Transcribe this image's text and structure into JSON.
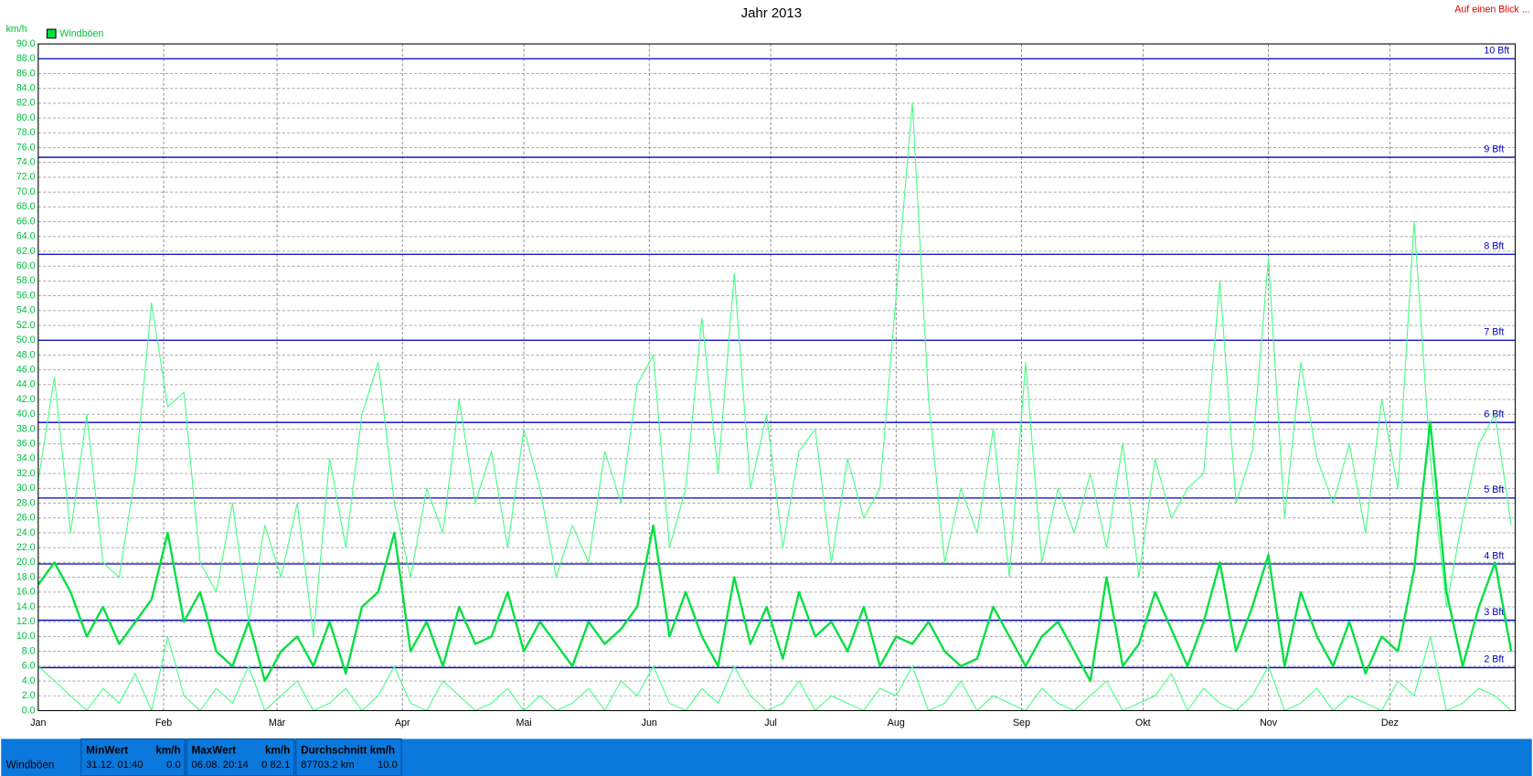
{
  "chart_data": {
    "type": "line",
    "title": "Jahr 2013",
    "corner_link": "Auf einen Blick ...",
    "y_unit": "km/h",
    "xlim": [
      0,
      365
    ],
    "ylim": [
      0,
      90
    ],
    "grid": true,
    "xticks": [
      {
        "value": 0,
        "label": "Jan"
      },
      {
        "value": 31,
        "label": "Feb"
      },
      {
        "value": 59,
        "label": "Mär"
      },
      {
        "value": 90,
        "label": "Apr"
      },
      {
        "value": 120,
        "label": "Mai"
      },
      {
        "value": 151,
        "label": "Jun"
      },
      {
        "value": 181,
        "label": "Jul"
      },
      {
        "value": 212,
        "label": "Aug"
      },
      {
        "value": 243,
        "label": "Sep"
      },
      {
        "value": 273,
        "label": "Okt"
      },
      {
        "value": 304,
        "label": "Nov"
      },
      {
        "value": 334,
        "label": "Dez"
      }
    ],
    "yticks": [
      {
        "value": 0,
        "label": "0.0"
      },
      {
        "value": 2,
        "label": "2.0"
      },
      {
        "value": 4,
        "label": "4.0"
      },
      {
        "value": 6,
        "label": "6.0"
      },
      {
        "value": 8,
        "label": "8.0"
      },
      {
        "value": 10,
        "label": "10.0"
      },
      {
        "value": 12,
        "label": "12.0"
      },
      {
        "value": 14,
        "label": "14.0"
      },
      {
        "value": 16,
        "label": "16.0"
      },
      {
        "value": 18,
        "label": "18.0"
      },
      {
        "value": 20,
        "label": "20.0"
      },
      {
        "value": 22,
        "label": "22.0"
      },
      {
        "value": 24,
        "label": "24.0"
      },
      {
        "value": 26,
        "label": "26.0"
      },
      {
        "value": 28,
        "label": "28.0"
      },
      {
        "value": 30,
        "label": "30.0"
      },
      {
        "value": 32,
        "label": "32.0"
      },
      {
        "value": 34,
        "label": "34.0"
      },
      {
        "value": 36,
        "label": "36.0"
      },
      {
        "value": 38,
        "label": "38.0"
      },
      {
        "value": 40,
        "label": "40.0"
      },
      {
        "value": 42,
        "label": "42.0"
      },
      {
        "value": 44,
        "label": "44.0"
      },
      {
        "value": 46,
        "label": "46.0"
      },
      {
        "value": 48,
        "label": "48.0"
      },
      {
        "value": 50,
        "label": "50.0"
      },
      {
        "value": 52,
        "label": "52.0"
      },
      {
        "value": 54,
        "label": "54.0"
      },
      {
        "value": 56,
        "label": "56.0"
      },
      {
        "value": 58,
        "label": "58.0"
      },
      {
        "value": 60,
        "label": "60.0"
      },
      {
        "value": 62,
        "label": "62.0"
      },
      {
        "value": 64,
        "label": "64.0"
      },
      {
        "value": 66,
        "label": "66.0"
      },
      {
        "value": 68,
        "label": "68.0"
      },
      {
        "value": 70,
        "label": "70.0"
      },
      {
        "value": 72,
        "label": "72.0"
      },
      {
        "value": 74,
        "label": "74.0"
      },
      {
        "value": 76,
        "label": "76.0"
      },
      {
        "value": 78,
        "label": "78.0"
      },
      {
        "value": 80,
        "label": "80.0"
      },
      {
        "value": 82,
        "label": "82.0"
      },
      {
        "value": 84,
        "label": "84.0"
      },
      {
        "value": 86,
        "label": "86.0"
      },
      {
        "value": 88,
        "label": "88.0"
      },
      {
        "value": 90,
        "label": "90.0"
      }
    ],
    "reference_lines": [
      {
        "value": 5.8,
        "label": "2 Bft"
      },
      {
        "value": 12.2,
        "label": "3 Bft"
      },
      {
        "value": 19.8,
        "label": "4 Bft"
      },
      {
        "value": 28.7,
        "label": "5 Bft"
      },
      {
        "value": 38.9,
        "label": "6 Bft"
      },
      {
        "value": 50,
        "label": "7 Bft"
      },
      {
        "value": 61.6,
        "label": "8 Bft"
      },
      {
        "value": 74.7,
        "label": "9 Bft"
      },
      {
        "value": 88,
        "label": "10 Bft"
      }
    ],
    "reference_color": "#0000c0",
    "x": [
      0,
      4,
      8,
      12,
      16,
      20,
      24,
      28,
      32,
      36,
      40,
      44,
      48,
      52,
      56,
      60,
      64,
      68,
      72,
      76,
      80,
      84,
      88,
      92,
      96,
      100,
      104,
      108,
      112,
      116,
      120,
      124,
      128,
      132,
      136,
      140,
      144,
      148,
      152,
      156,
      160,
      164,
      168,
      172,
      176,
      180,
      184,
      188,
      192,
      196,
      200,
      204,
      208,
      212,
      216,
      220,
      224,
      228,
      232,
      236,
      240,
      244,
      248,
      252,
      256,
      260,
      264,
      268,
      272,
      276,
      280,
      284,
      288,
      292,
      296,
      300,
      304,
      308,
      312,
      316,
      320,
      324,
      328,
      332,
      336,
      340,
      344,
      348,
      352,
      356,
      360,
      364
    ],
    "series": [
      {
        "name": "Windböen",
        "color": "#00e040",
        "linewidth": 2.2,
        "values": [
          17,
          20,
          16,
          10,
          14,
          9,
          12,
          15,
          24,
          12,
          16,
          8,
          6,
          12,
          4,
          8,
          10,
          6,
          12,
          5,
          14,
          16,
          24,
          8,
          12,
          6,
          14,
          9,
          10,
          16,
          8,
          12,
          9,
          6,
          12,
          9,
          11,
          14,
          25,
          10,
          16,
          10,
          6,
          18,
          9,
          14,
          7,
          16,
          10,
          12,
          8,
          14,
          6,
          10,
          9,
          12,
          8,
          6,
          7,
          14,
          10,
          6,
          10,
          12,
          8,
          4,
          18,
          6,
          9,
          16,
          11,
          6,
          12,
          20,
          8,
          14,
          21,
          6,
          16,
          10,
          6,
          12,
          5,
          10,
          8,
          19,
          39,
          16,
          6,
          14,
          20,
          8
        ]
      },
      {
        "color": "#40ff80",
        "linewidth": 1,
        "values": [
          31,
          45,
          24,
          40,
          20,
          18,
          32,
          55,
          41,
          43,
          20,
          16,
          28,
          12,
          25,
          18,
          28,
          10,
          34,
          22,
          40,
          47,
          28,
          18,
          30,
          24,
          42,
          28,
          35,
          22,
          38,
          30,
          18,
          25,
          20,
          35,
          28,
          44,
          48,
          22,
          30,
          53,
          32,
          59,
          30,
          40,
          22,
          35,
          38,
          20,
          34,
          26,
          30,
          56,
          82.1,
          42,
          20,
          30,
          24,
          38,
          18,
          47,
          20,
          30,
          24,
          32,
          22,
          36,
          18,
          34,
          26,
          30,
          32,
          58,
          28,
          35,
          61,
          26,
          47,
          34,
          28,
          36,
          24,
          42,
          30,
          66,
          34,
          14,
          26,
          36,
          40,
          25
        ]
      },
      {
        "color": "#40ff80",
        "linewidth": 1,
        "values": [
          6,
          4,
          2,
          0,
          3,
          1,
          5,
          0,
          10,
          2,
          0,
          3,
          1,
          6,
          0,
          2,
          4,
          0,
          1,
          3,
          0,
          2,
          6,
          1,
          0,
          4,
          2,
          0,
          1,
          3,
          0,
          2,
          0,
          1,
          3,
          0,
          4,
          2,
          6,
          1,
          0,
          3,
          1,
          6,
          2,
          0,
          1,
          4,
          0,
          2,
          1,
          0,
          3,
          2,
          6,
          0,
          1,
          4,
          0,
          2,
          1,
          0,
          3,
          1,
          0,
          2,
          4,
          0,
          1,
          2,
          5,
          0,
          3,
          1,
          0,
          2,
          6,
          0,
          1,
          3,
          0,
          2,
          1,
          0,
          4,
          2,
          10,
          0,
          1,
          3,
          2,
          0
        ]
      }
    ]
  },
  "stats": {
    "label": "Windböen",
    "columns": [
      {
        "header": "MinWert",
        "unit": "km/h",
        "when": "31.12.  01:40",
        "value": "0.0"
      },
      {
        "header": "MaxWert",
        "unit": "km/h",
        "when": "06.08.  20:14",
        "value": "0 82.1"
      },
      {
        "header": "Durchschnitt km/h",
        "when": "87703.2 km",
        "value": "10.0"
      }
    ]
  }
}
